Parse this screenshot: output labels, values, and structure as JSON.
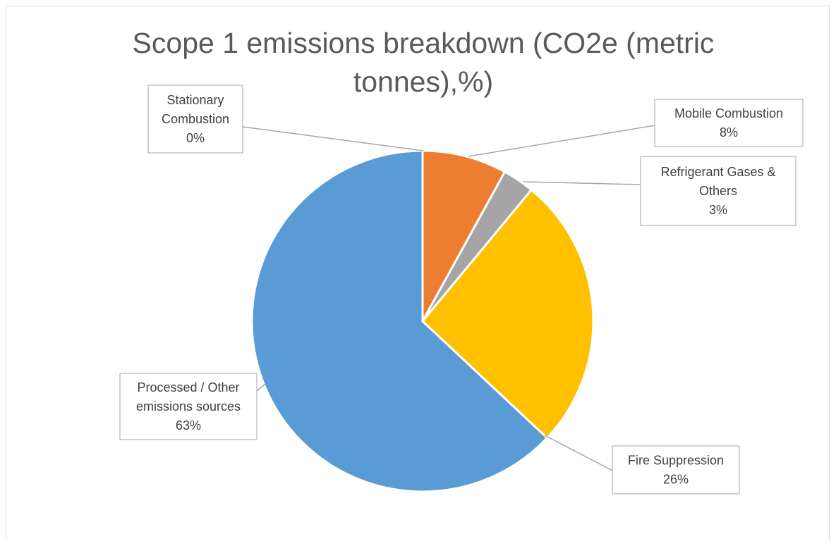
{
  "chart_data": {
    "type": "pie",
    "title": "Scope 1 emissions breakdown (CO2e (metric tonnes),%)",
    "title_lines": [
      "Scope 1 emissions breakdown (CO2e (metric",
      "tonnes),%)"
    ],
    "slices": [
      {
        "label_lines": [
          "Stationary",
          "Combustion"
        ],
        "value": 0,
        "pct_label": "0%",
        "color": "#4472c4"
      },
      {
        "label_lines": [
          "Mobile Combustion"
        ],
        "value": 8,
        "pct_label": "8%",
        "color": "#ed7d31"
      },
      {
        "label_lines": [
          "Refrigerant Gases &",
          "Others"
        ],
        "value": 3,
        "pct_label": "3%",
        "color": "#a5a5a5"
      },
      {
        "label_lines": [
          "Fire Suppression"
        ],
        "value": 26,
        "pct_label": "26%",
        "color": "#ffc000"
      },
      {
        "label_lines": [
          "Processed / Other",
          "emissions sources"
        ],
        "value": 63,
        "pct_label": "63%",
        "color": "#5b9bd5"
      }
    ],
    "legend": "none"
  }
}
